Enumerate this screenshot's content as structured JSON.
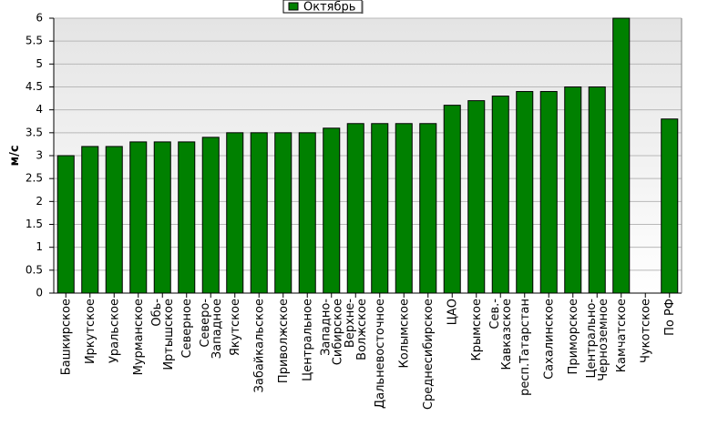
{
  "chart_data": {
    "type": "bar",
    "y_label": "м/с",
    "categories": [
      "Башкирское",
      "Иркутское",
      "Уральское",
      "Мурманское",
      "Обь-Иртышское",
      "Северное",
      "Северо-Западное",
      "Якутское",
      "Забайкальское",
      "Приволжское",
      "Центральное",
      "Западно-Сибирское",
      "Верхне-Волжское",
      "Дальневосточное",
      "Колымское",
      "Среднесибирское",
      "ЦАО",
      "Крымское",
      "Сев.-Кавказское",
      "респ.Татарстан",
      "Сахалинское",
      "Приморское",
      "Центрально-Черноземное",
      "Камчатское",
      "Чукотское",
      "По РФ"
    ],
    "series": [
      {
        "name": "Октябрь",
        "color": "#008000",
        "values": [
          3.0,
          3.2,
          3.2,
          3.3,
          3.3,
          3.3,
          3.4,
          3.5,
          3.5,
          3.5,
          3.5,
          3.6,
          3.7,
          3.7,
          3.7,
          3.7,
          4.1,
          4.2,
          4.3,
          4.4,
          4.4,
          4.5,
          4.5,
          6.0,
          null,
          3.8
        ]
      }
    ],
    "ylim": [
      0,
      6
    ],
    "yticks": [
      0,
      0.5,
      1,
      1.5,
      2,
      2.5,
      3,
      3.5,
      4,
      4.5,
      5,
      5.5,
      6
    ],
    "grid": true,
    "legend": "top"
  }
}
